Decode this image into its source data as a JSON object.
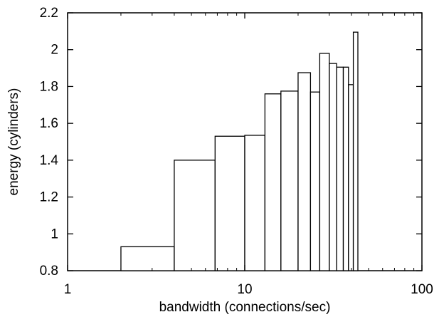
{
  "chart_data": {
    "type": "bar",
    "title": "",
    "xlabel": "bandwidth (connections/sec)",
    "ylabel": "energy (cylinders)",
    "x_scale": "log",
    "xlim": [
      1,
      100
    ],
    "ylim": [
      0.8,
      2.2
    ],
    "x_ticks": [
      {
        "value": 1,
        "label": "1"
      },
      {
        "value": 10,
        "label": "10"
      },
      {
        "value": 100,
        "label": "100"
      }
    ],
    "y_ticks": [
      {
        "value": 0.8,
        "label": "0.8"
      },
      {
        "value": 1.0,
        "label": "1"
      },
      {
        "value": 1.2,
        "label": "1.2"
      },
      {
        "value": 1.4,
        "label": "1.4"
      },
      {
        "value": 1.6,
        "label": "1.6"
      },
      {
        "value": 1.8,
        "label": "1.8"
      },
      {
        "value": 2.0,
        "label": "2"
      },
      {
        "value": 2.2,
        "label": "2.2"
      }
    ],
    "grid": false,
    "bars": [
      {
        "x_start": 2.0,
        "x_end": 4.0,
        "value": 0.93
      },
      {
        "x_start": 4.0,
        "x_end": 6.8,
        "value": 1.4
      },
      {
        "x_start": 6.8,
        "x_end": 10.0,
        "value": 1.53
      },
      {
        "x_start": 10.0,
        "x_end": 13.0,
        "value": 1.535
      },
      {
        "x_start": 13.0,
        "x_end": 16.0,
        "value": 1.76
      },
      {
        "x_start": 16.0,
        "x_end": 20.0,
        "value": 1.775
      },
      {
        "x_start": 20.0,
        "x_end": 23.5,
        "value": 1.875
      },
      {
        "x_start": 23.5,
        "x_end": 26.5,
        "value": 1.77
      },
      {
        "x_start": 26.5,
        "x_end": 30.0,
        "value": 1.98
      },
      {
        "x_start": 30.0,
        "x_end": 33.0,
        "value": 1.925
      },
      {
        "x_start": 33.0,
        "x_end": 36.0,
        "value": 1.905
      },
      {
        "x_start": 36.0,
        "x_end": 38.5,
        "value": 1.905
      },
      {
        "x_start": 38.5,
        "x_end": 41.0,
        "value": 1.81
      },
      {
        "x_start": 41.0,
        "x_end": 43.5,
        "value": 2.095
      }
    ]
  }
}
